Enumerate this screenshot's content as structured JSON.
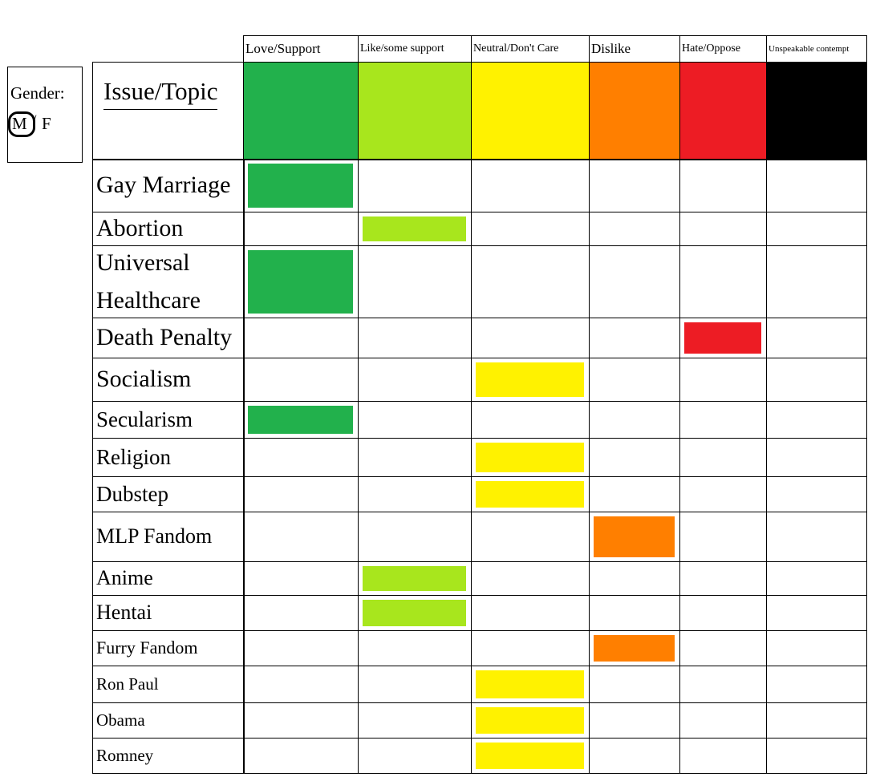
{
  "gender": {
    "label": "Gender:",
    "options": [
      "M",
      "F"
    ],
    "separator": "/"
  },
  "table": {
    "corner": "Issue/Topic",
    "columns": [
      {
        "name": "Love/Support",
        "color": "#22b14c"
      },
      {
        "name": "Like/some support",
        "color": "#a8e61d"
      },
      {
        "name": "Neutral/Don't Care",
        "color": "#fff200"
      },
      {
        "name": "Dislike",
        "color": "#ff7f00"
      },
      {
        "name": "Hate/Oppose",
        "color": "#ed1c24"
      },
      {
        "name": "Unspeakable contempt",
        "color": "#000000"
      }
    ],
    "rows": [
      {
        "topic": "Gay Marriage",
        "marked": 0
      },
      {
        "topic": "Abortion",
        "marked": 1
      },
      {
        "topic": "Universal Healthcare",
        "marked": 0
      },
      {
        "topic": "Death Penalty",
        "marked": 4
      },
      {
        "topic": "Socialism",
        "marked": 2
      },
      {
        "topic": "Secularism",
        "marked": 0
      },
      {
        "topic": "Religion",
        "marked": 2
      },
      {
        "topic": "Dubstep",
        "marked": 2
      },
      {
        "topic": "MLP Fandom",
        "marked": 3
      },
      {
        "topic": "Anime",
        "marked": 1
      },
      {
        "topic": "Hentai",
        "marked": 1
      },
      {
        "topic": "Furry Fandom",
        "marked": 3
      },
      {
        "topic": "Ron Paul",
        "marked": 2
      },
      {
        "topic": "Obama",
        "marked": 2
      },
      {
        "topic": "Romney",
        "marked": 2
      }
    ]
  }
}
